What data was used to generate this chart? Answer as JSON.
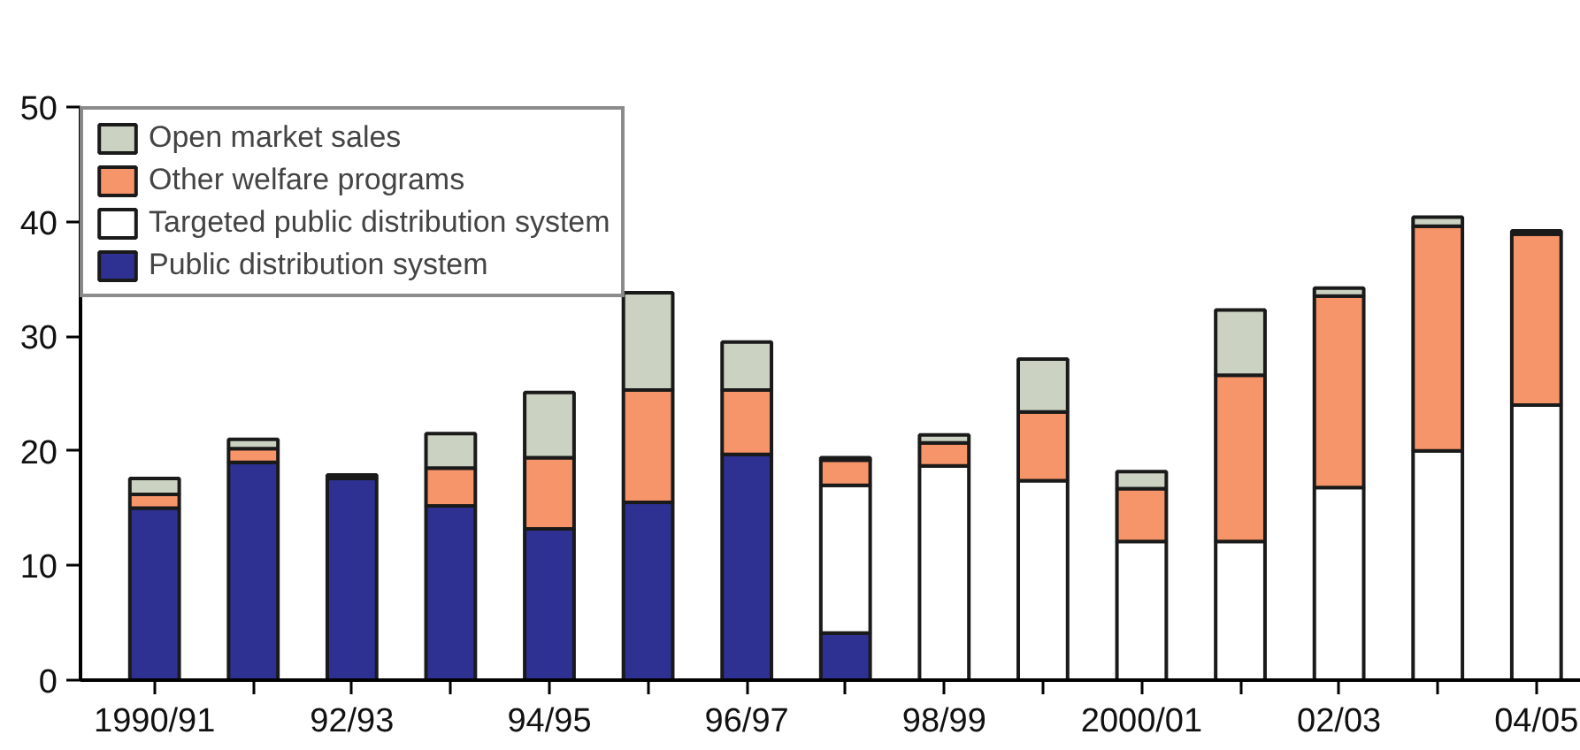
{
  "chart_data": {
    "type": "bar",
    "stacked": true,
    "categories": [
      "1990/91",
      null,
      "92/93",
      null,
      "94/95",
      null,
      "96/97",
      null,
      "98/99",
      null,
      "2000/01",
      null,
      "02/03",
      null,
      "04/05"
    ],
    "series": [
      {
        "name": "Public distribution system",
        "color": "#2e3192",
        "values": [
          15.0,
          19.0,
          17.6,
          15.2,
          13.2,
          15.5,
          19.7,
          4.1,
          null,
          null,
          null,
          null,
          null,
          null,
          null
        ]
      },
      {
        "name": "Targeted public distribution system",
        "color": "#ffffff",
        "values": [
          null,
          null,
          null,
          null,
          null,
          null,
          null,
          12.9,
          18.7,
          17.4,
          12.1,
          12.1,
          16.8,
          20.0,
          24.0
        ]
      },
      {
        "name": "Other welfare programs",
        "color": "#f7956a",
        "values": [
          1.2,
          1.2,
          0.3,
          3.3,
          6.2,
          9.8,
          5.6,
          2.2,
          2.0,
          6.0,
          4.6,
          14.5,
          16.7,
          19.6,
          14.9
        ]
      },
      {
        "name": "Open market sales",
        "color": "#cbd2c1",
        "values": [
          1.4,
          0.8,
          null,
          3.0,
          5.7,
          8.5,
          4.2,
          0.2,
          0.7,
          4.6,
          1.5,
          5.7,
          0.7,
          0.8,
          0.3
        ]
      }
    ],
    "ylim": [
      0,
      50
    ],
    "yticks": [
      0,
      10,
      20,
      30,
      40,
      50
    ],
    "grid": false,
    "legend": "top left"
  }
}
